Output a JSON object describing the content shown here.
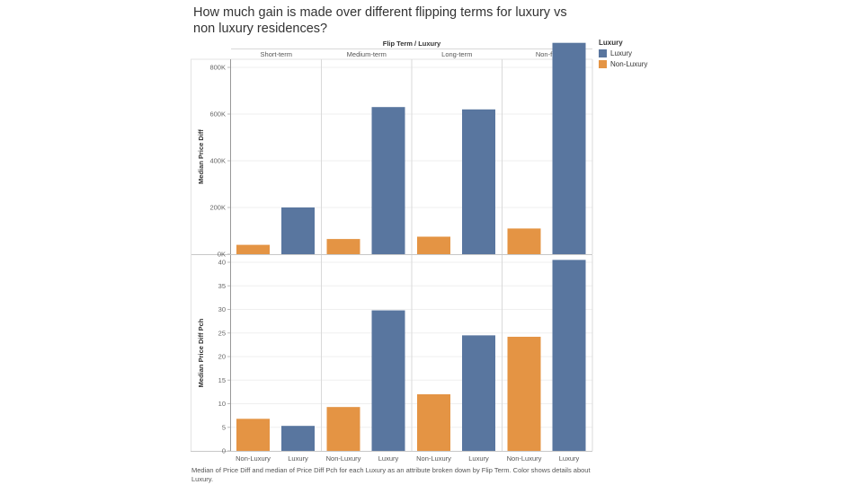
{
  "chart_data": {
    "type": "bar",
    "title": "How much gain is made over different flipping terms for luxury vs non luxury residences?",
    "header_label": "Flip Term  /  Luxury",
    "column_groups": [
      "Short-term",
      "Medium-term",
      "Long-term",
      "Non-flip"
    ],
    "categories": [
      "Non-Luxury",
      "Luxury"
    ],
    "colors": {
      "Luxury": "#59769f",
      "Non-Luxury": "#e49444"
    },
    "legend": {
      "title": "Luxury",
      "placement": "top-right",
      "items": [
        {
          "label": "Luxury",
          "color": "#59769f"
        },
        {
          "label": "Non-Luxury",
          "color": "#e49444"
        }
      ]
    },
    "panels": [
      {
        "ylabel": "Median Price Diff",
        "ylim": [
          0,
          900000
        ],
        "ticks": [
          0,
          200000,
          400000,
          600000,
          800000
        ],
        "tick_labels": [
          "0K",
          "200K",
          "400K",
          "600K",
          "800K"
        ],
        "series": [
          {
            "name": "Non-Luxury",
            "values": [
              40000,
              65000,
              75000,
              110000
            ]
          },
          {
            "name": "Luxury",
            "values": [
              200000,
              630000,
              620000,
              905000
            ]
          }
        ]
      },
      {
        "ylabel": "Median Price Diff Pch",
        "ylim": [
          0,
          40
        ],
        "ticks": [
          0,
          5,
          10,
          15,
          20,
          25,
          30,
          35,
          40
        ],
        "tick_labels": [
          "0",
          "5",
          "10",
          "15",
          "20",
          "25",
          "30",
          "35",
          "40"
        ],
        "series": [
          {
            "name": "Non-Luxury",
            "values": [
              6.8,
              9.3,
              12.0,
              24.2
            ]
          },
          {
            "name": "Luxury",
            "values": [
              5.3,
              29.8,
              24.5,
              40.5
            ]
          }
        ]
      }
    ],
    "grid": true,
    "caption": "Median of Price Diff and median of Price Diff Pch for each Luxury as an attribute broken down by Flip Term.  Color shows details about Luxury."
  }
}
